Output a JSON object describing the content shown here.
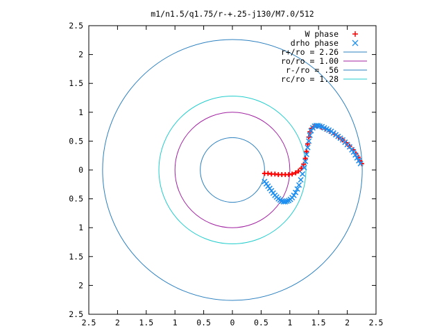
{
  "chart_data": {
    "type": "scatter",
    "title": "m1/n1.5/q1.75/r-+.25-j130/M7.0/512",
    "xlabel": "",
    "ylabel": "",
    "xlim": [
      -2.5,
      2.5
    ],
    "ylim": [
      -2.5,
      2.5
    ],
    "x_ticks": [
      -2.5,
      -2,
      -1.5,
      -1,
      -0.5,
      0,
      0.5,
      1,
      1.5,
      2,
      2.5
    ],
    "x_tick_labels": [
      "2.5",
      "2",
      "1.5",
      "1",
      "0.5",
      "0",
      "0.5",
      "1",
      "1.5",
      "2",
      "2.5"
    ],
    "y_ticks": [
      2.5,
      2,
      1.5,
      1,
      0.5,
      0,
      -0.5,
      -1,
      -1.5,
      -2,
      -2.5
    ],
    "y_tick_labels": [
      "2.5",
      "2",
      "1.5",
      "1",
      "0.5",
      "0",
      "0.5",
      "1",
      "1.5",
      "2",
      "2.5"
    ],
    "grid": false,
    "legend_position": "top-right",
    "circles": [
      {
        "name": "r+/ro = 2.26",
        "radius": 2.26,
        "color": "#2a7fbf"
      },
      {
        "name": "ro/ro = 1.00",
        "radius": 1.0,
        "color": "#a020a0"
      },
      {
        "name": "r-/ro = .56",
        "radius": 0.56,
        "color": "#2a7fbf"
      },
      {
        "name": "rc/ro = 1.28",
        "radius": 1.28,
        "color": "#22cccc"
      }
    ],
    "series": [
      {
        "name": "W phase",
        "marker": "plus",
        "color": "#ff0000",
        "x": [
          0.56,
          0.62,
          0.68,
          0.74,
          0.8,
          0.86,
          0.92,
          0.98,
          1.04,
          1.1,
          1.15,
          1.2,
          1.24,
          1.27,
          1.29,
          1.31,
          1.33,
          1.35,
          1.38,
          1.42,
          1.48,
          1.55,
          1.62,
          1.7,
          1.78,
          1.85,
          1.92,
          1.98,
          2.04,
          2.1,
          2.15,
          2.19,
          2.22,
          2.25
        ],
        "y": [
          -0.06,
          -0.06,
          -0.07,
          -0.07,
          -0.08,
          -0.08,
          -0.08,
          -0.08,
          -0.07,
          -0.05,
          -0.02,
          0.03,
          0.1,
          0.2,
          0.32,
          0.45,
          0.57,
          0.66,
          0.72,
          0.75,
          0.76,
          0.74,
          0.71,
          0.67,
          0.62,
          0.57,
          0.52,
          0.47,
          0.41,
          0.35,
          0.28,
          0.22,
          0.16,
          0.11
        ]
      },
      {
        "name": "drho phase",
        "marker": "cross",
        "color": "#1e8ff0",
        "x": [
          0.56,
          0.59,
          0.62,
          0.65,
          0.68,
          0.71,
          0.74,
          0.77,
          0.8,
          0.83,
          0.86,
          0.89,
          0.92,
          0.95,
          0.98,
          1.01,
          1.04,
          1.07,
          1.1,
          1.13,
          1.16,
          1.19,
          1.22,
          1.25,
          1.27,
          1.29,
          1.31,
          1.33,
          1.35,
          1.37,
          1.4,
          1.43,
          1.46,
          1.49,
          1.52,
          1.56,
          1.6,
          1.64,
          1.68,
          1.72,
          1.76,
          1.8,
          1.84,
          1.88,
          1.92,
          1.96,
          2.0,
          2.04,
          2.08,
          2.11,
          2.14,
          2.17,
          2.2,
          2.23
        ],
        "y": [
          -0.2,
          -0.24,
          -0.28,
          -0.32,
          -0.36,
          -0.4,
          -0.44,
          -0.47,
          -0.5,
          -0.52,
          -0.54,
          -0.55,
          -0.55,
          -0.54,
          -0.53,
          -0.51,
          -0.48,
          -0.44,
          -0.39,
          -0.33,
          -0.26,
          -0.17,
          -0.07,
          0.04,
          0.15,
          0.27,
          0.39,
          0.5,
          0.6,
          0.68,
          0.73,
          0.76,
          0.77,
          0.77,
          0.76,
          0.75,
          0.73,
          0.71,
          0.69,
          0.67,
          0.64,
          0.61,
          0.58,
          0.55,
          0.52,
          0.48,
          0.44,
          0.4,
          0.35,
          0.31,
          0.26,
          0.21,
          0.16,
          0.11
        ]
      }
    ]
  }
}
